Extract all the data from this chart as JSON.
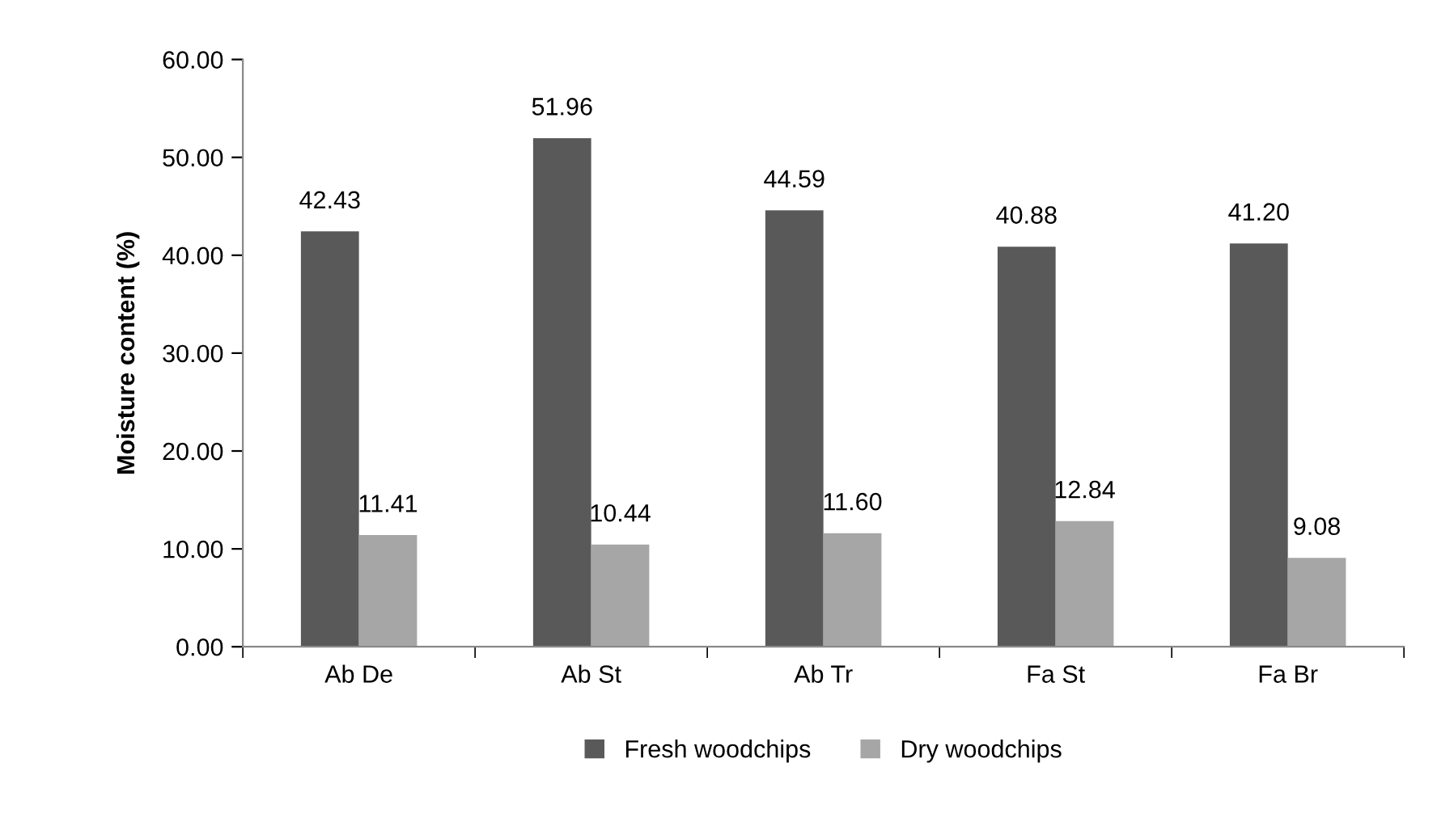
{
  "chart_data": {
    "type": "bar",
    "ylabel": "Moisture content (%)",
    "categories": [
      "Ab De",
      "Ab St",
      "Ab Tr",
      "Fa St",
      "Fa Br"
    ],
    "series": [
      {
        "name": "Fresh woodchips",
        "color": "#595959",
        "values": [
          42.43,
          51.96,
          44.59,
          40.88,
          41.2
        ],
        "value_labels": [
          "42.43",
          "51.96",
          "44.59",
          "40.88",
          "41.20"
        ]
      },
      {
        "name": "Dry woodchips",
        "color": "#a6a6a6",
        "values": [
          11.41,
          10.44,
          11.6,
          12.84,
          9.08
        ],
        "value_labels": [
          "11.41",
          "10.44",
          "11.60",
          "12.84",
          "9.08"
        ]
      }
    ],
    "ylim": [
      0,
      60
    ],
    "yticks": [
      {
        "value": 0,
        "label": "0.00"
      },
      {
        "value": 10,
        "label": "10.00"
      },
      {
        "value": 20,
        "label": "20.00"
      },
      {
        "value": 30,
        "label": "30.00"
      },
      {
        "value": 40,
        "label": "40.00"
      },
      {
        "value": 50,
        "label": "50.00"
      },
      {
        "value": 60,
        "label": "60.00"
      }
    ],
    "grid": false,
    "legend": "bottom"
  }
}
